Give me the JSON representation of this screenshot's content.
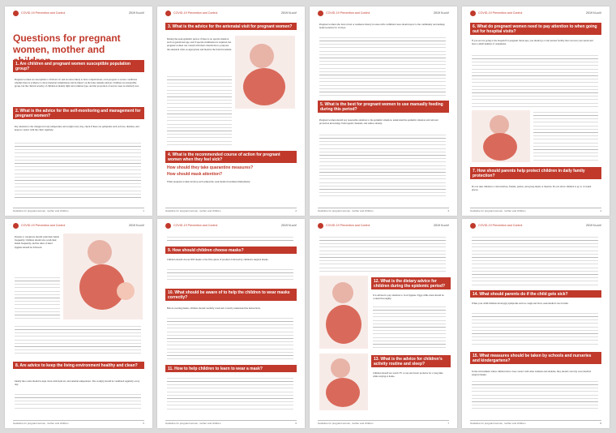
{
  "header": {
    "title": "COVID-19 Prevention and Control",
    "brand": "2019 N-coV"
  },
  "footer": {
    "text": "Guideline for pregnant women, mother and children"
  },
  "page1": {
    "main_title": "Questions for pregnant women, mother and children",
    "sections": [
      "1. Are children and pregnant women susceptible population group?",
      "2. What is the advice for the self-monitoring and management for pregnant women?"
    ],
    "body1": "Pregnant women are susceptible to 2019-nCoV, and are more likely to have complications, even progress to severe conditions whether there is evidence to show maternal transmission and its impact on the fetus remains unclear. Children are susceptible group, but the clinical severity of children is mainly light and common type, and the proportion of severe cases is relatively low.",
    "body2": "Pay attention to the changes in body temperature and weight every day, check if there are symptoms such as fever, diarrhea, and keep in contact with the clinic regularly."
  },
  "page2": {
    "sections": [
      "3. What is the advice for the antenatal visit for pregnant women?",
      "4. What is the recommended course of action for pregnant women when they feel sick?",
      "How should they take quarantine measures?",
      "How should mask attention?"
    ],
    "body1": "During the peak epidemic period, if there is no special situation such as gestational age, and if special examination is required, the pregnant woman can consult with their obstetrician to postpone the antenatal visits as appropriate and monitor the fetal movement.",
    "body2": "When pregnant women develop such symptoms, seek medical treatment immediately."
  },
  "page3": {
    "sections": [
      "5. What is the best for pregnant women to use manually feeding during this period?"
    ],
    "body1": "Pregnant women who have travel or residence history in areas with confirmed cases should report to the community and undergo home isolation for 14 days.",
    "body2": "Pregnant women should pay reasonable attention to the epidemic situation, understand the epidemic situation and relevant protection knowledge from regular channels, and reduce anxiety."
  },
  "page4": {
    "sections": [
      "6. What do pregnant women need to pay attention to when going out for hospital visits?",
      "7. How should parents help protect children in daily family protection?"
    ],
    "body1": "If you are not going to the hospital for pregnant check-ups, you should go to the nearest facility that can treat your needs and have a small number of outpatients.",
    "body2": "Do not take children to visit relatives, friends, parties, and group meals or theatres. Do not allow children to go to crowded places."
  },
  "page5": {
    "sections": [
      "8. Are advice to keep the living environment healthy and clean?"
    ],
    "body1": "Parents or caregivers should wash their hands frequently. Children should also wash their hands frequently, and the rules of hand hygiene should be followed.",
    "body2": "Ideally the rooms should be kept clean with fresh air, and suitable temperature. The room(s) should be ventilated regularly every day."
  },
  "page6": {
    "sections": [
      "9. How should children choose masks?",
      "10. What should be aware of to help the children to wear masks correctly?",
      "11. How to help children to learn to wear a mask?"
    ],
    "body1": "Children should choose N95 masks or the first option of products followed by children's surgical masks.",
    "body2": "Before wearing masks, children should carefully wash and correctly understand the instructions."
  },
  "page7": {
    "sections": [
      "12. What is the dietary advice for children during the epidemic period?",
      "13. What is the advice for children's activity routine and sleep?"
    ],
    "body1": "It is advised to pay attention to food hygiene. Eggs, milk, meat should be cooked thoroughly.",
    "body2": "Children should not watch TV or use electronic products for a long time while staying at home."
  },
  "page8": {
    "sections": [
      "14. What should parents do if the child gets sick?",
      "15. What measures should be taken by schools and nurseries and kindergartens?"
    ],
    "body1": "When your child/children develop(s) symptoms such as cough and fever, seek medical care in time.",
    "body2": "In the environment where children have close contact with other students and students, they should correctly wear medical surgical masks."
  }
}
